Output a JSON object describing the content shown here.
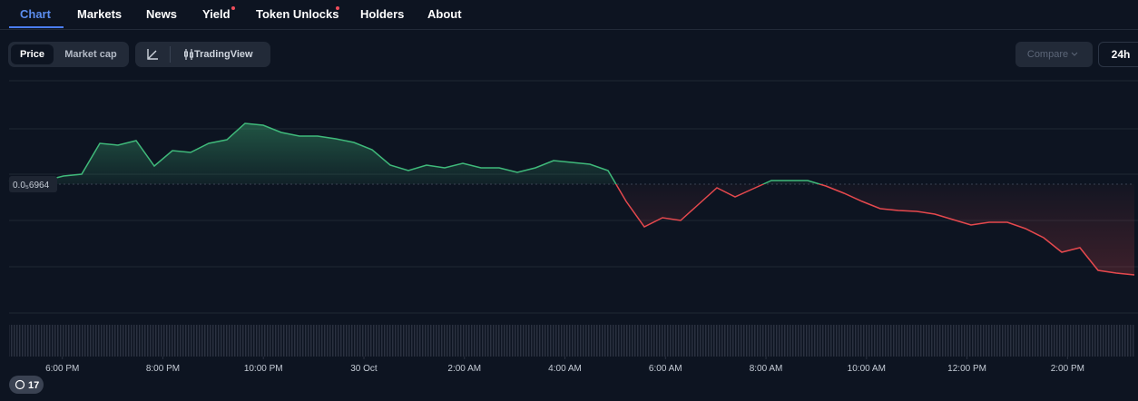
{
  "tabs": [
    "Chart",
    "Markets",
    "News",
    "Yield",
    "Token Unlocks",
    "Holders",
    "About"
  ],
  "toggle": [
    "Price",
    "Market cap"
  ],
  "chart_style": "TradingView",
  "compare": "Compare",
  "range": "24h",
  "badge": 17,
  "chart_data": {
    "type": "line",
    "xlim": [
      -1.06,
      21.33
    ],
    "xticks": [
      {
        "value": 0,
        "label": "6:00 PM"
      },
      {
        "value": 2,
        "label": "8:00 PM"
      },
      {
        "value": 4,
        "label": "10:00 PM"
      },
      {
        "value": 6,
        "label": "30 Oct"
      },
      {
        "value": 8,
        "label": "2:00 AM"
      },
      {
        "value": 10,
        "label": "4:00 AM"
      },
      {
        "value": 12,
        "label": "6:00 AM"
      },
      {
        "value": 14,
        "label": "8:00 AM"
      },
      {
        "value": 16,
        "label": "10:00 AM"
      },
      {
        "value": 18,
        "label": "12:00 PM"
      },
      {
        "value": 20,
        "label": "2:00 PM"
      }
    ],
    "ylim": [
      6.68e-06,
      7.192e-06
    ],
    "baseline": {
      "value": 6.964e-06,
      "label": "0.0₅6964"
    },
    "values": [
      6.97e-06,
      6.978e-06,
      6.972e-06,
      6.982e-06,
      6.986e-06,
      7.054e-06,
      7.05e-06,
      7.06e-06,
      7.004e-06,
      7.038e-06,
      7.034e-06,
      7.054e-06,
      7.062e-06,
      7.098e-06,
      7.094e-06,
      7.078e-06,
      7.07e-06,
      7.07e-06,
      7.064e-06,
      7.056e-06,
      7.04e-06,
      7.006e-06,
      6.994e-06,
      7.006e-06,
      7e-06,
      7.01e-06,
      7e-06,
      7e-06,
      6.99e-06,
      7e-06,
      7.016e-06,
      7.012e-06,
      7.008e-06,
      6.994e-06,
      6.926e-06,
      6.87e-06,
      6.89e-06,
      6.884e-06,
      6.92e-06,
      6.956e-06,
      6.936e-06,
      6.954e-06,
      6.972e-06,
      6.972e-06,
      6.972e-06,
      6.96e-06,
      6.944e-06,
      6.926e-06,
      6.91e-06,
      6.906e-06,
      6.904e-06,
      6.898e-06,
      6.886e-06,
      6.874e-06,
      6.88e-06,
      6.88e-06,
      6.866e-06,
      6.846e-06,
      6.814e-06,
      6.824e-06,
      6.774e-06,
      6.768e-06,
      6.764e-06
    ],
    "up_color": "#3fb97a",
    "down_color": "#e5484d"
  }
}
